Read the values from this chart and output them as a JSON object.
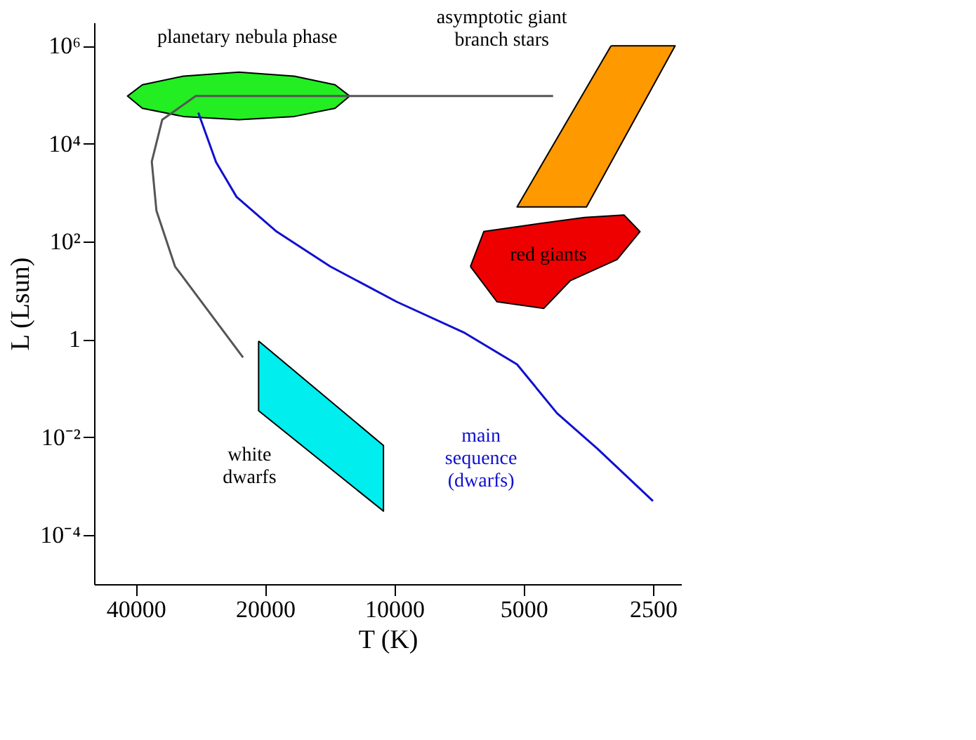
{
  "chart_data": {
    "type": "line",
    "xlabel": "T (K)",
    "ylabel": "L (Lsun)",
    "log": "xy",
    "grid": false,
    "xlim": [
      50000,
      2150
    ],
    "xticks": [
      40000,
      20000,
      10000,
      5000,
      2500
    ],
    "ylim": [
      1e-05,
      3000000
    ],
    "yticks": [
      {
        "value": 1000000,
        "label": "10⁶"
      },
      {
        "value": 10000,
        "label": "10⁴"
      },
      {
        "value": 100,
        "label": "10²"
      },
      1,
      {
        "value": 0.01,
        "label": "10⁻²"
      },
      {
        "value": 0.0001,
        "label": "10⁻⁴"
      }
    ],
    "series": [
      {
        "type": "area",
        "name": "planetary nebula phase",
        "color": "#22ee22",
        "x": [
          12700,
          13740,
          17100,
          23000,
          31000,
          38600,
          41800,
          38600,
          31000,
          23000,
          17100,
          13740,
          12700
        ],
        "values": [
          94000,
          160000,
          240000,
          290000,
          240000,
          160000,
          94000,
          53000,
          36000,
          31000,
          36000,
          53000,
          94000
        ]
      },
      {
        "type": "area",
        "name": "asymptotic giant\nbranch stars",
        "color": "#ff9900",
        "x": [
          3130,
          2220,
          3570,
          5180,
          3130
        ],
        "values": [
          1000000,
          1000000,
          510,
          510,
          1000000
        ]
      },
      {
        "type": "area",
        "name": "red giants",
        "color": "#ee0000",
        "x": [
          6650,
          6190,
          4820,
          3610,
          2920,
          2680,
          3030,
          3890,
          4490,
          5770,
          6650
        ],
        "values": [
          31,
          160,
          220,
          310,
          350,
          160,
          43,
          16,
          4.3,
          5.9,
          31
        ]
      },
      {
        "type": "area",
        "name": "white\ndwarfs",
        "color": "#00eeee",
        "x": [
          20700,
          10600,
          10600,
          20700,
          20700
        ],
        "values": [
          0.93,
          0.0068,
          0.00031,
          0.035,
          0.93
        ]
      },
      {
        "color": "#555555",
        "x": [
          4270,
          29000,
          34700,
          36700,
          35800,
          32400,
          22500
        ],
        "values": [
          94000,
          94000,
          31000,
          4300,
          430,
          31,
          0.43
        ]
      },
      {
        "name": "main\nsequence\n(dwarfs)",
        "color": "#1010d0",
        "x": [
          28600,
          26000,
          23300,
          18800,
          14100,
          9880,
          6900,
          5180,
          4180,
          3370,
          2500
        ],
        "values": [
          43000,
          4200,
          820,
          160,
          31,
          5.9,
          1.4,
          0.31,
          0.031,
          0.0059,
          0.0005
        ]
      }
    ]
  }
}
